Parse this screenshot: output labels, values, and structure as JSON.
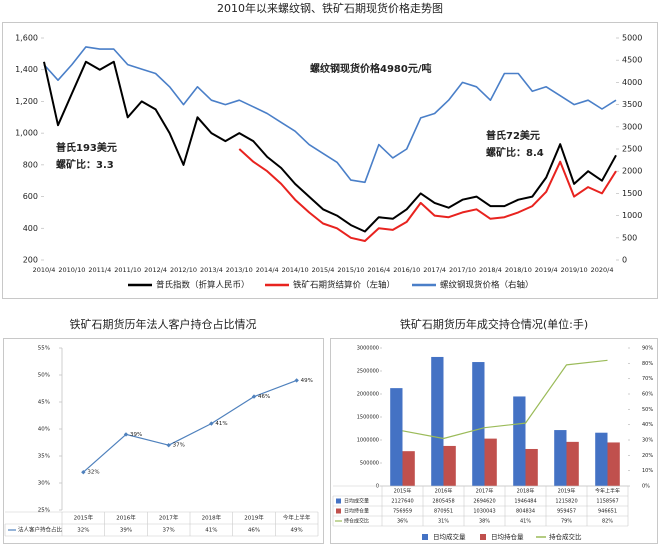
{
  "chart_data": [
    {
      "type": "line",
      "title": "2010年以来螺纹钢、铁矿石期现货价格走势图",
      "annotations": [
        "螺纹钢现货价格4980元/吨",
        "普氏193美元",
        "螺矿比：3.3",
        "普氏72美元",
        "螺矿比：8.4"
      ],
      "categories": [
        "2010/4",
        null,
        "2010/10",
        null,
        "2011/4",
        null,
        "2011/10",
        null,
        "2012/4",
        null,
        "2012/10",
        null,
        "2013/4",
        null,
        "2013/10",
        null,
        "2014/4",
        null,
        "2014/10",
        null,
        "2015/4",
        null,
        "2015/10",
        null,
        "2016/4",
        null,
        "2016/10",
        null,
        "2017/4",
        null,
        "2017/10",
        null,
        "2018/4",
        null,
        "2018/10",
        null,
        "2019/4",
        null,
        "2019/10",
        null,
        "2020/4",
        null
      ],
      "series": [
        {
          "name": "普氏指数（折算人民币）",
          "color": "#000000",
          "values": [
            1450,
            1050,
            1250,
            1450,
            1400,
            1450,
            1100,
            1200,
            1150,
            1000,
            800,
            1100,
            1000,
            950,
            1000,
            950,
            850,
            780,
            680,
            600,
            520,
            480,
            420,
            380,
            470,
            460,
            520,
            620,
            560,
            530,
            580,
            600,
            540,
            540,
            580,
            600,
            720,
            930,
            680,
            760,
            700,
            860
          ]
        },
        {
          "name": "铁矿石期货结算价（左轴）",
          "color": "#e8231f",
          "values": [
            null,
            null,
            null,
            null,
            null,
            null,
            null,
            null,
            null,
            null,
            null,
            null,
            null,
            null,
            900,
            820,
            760,
            680,
            580,
            500,
            430,
            400,
            340,
            320,
            400,
            390,
            440,
            560,
            480,
            470,
            500,
            520,
            460,
            470,
            500,
            540,
            630,
            820,
            600,
            660,
            620,
            760
          ]
        },
        {
          "name": "螺纹钢现货价格（右轴）",
          "color": "#4a7fc8",
          "axis": "y2",
          "values": [
            4400,
            4050,
            4400,
            4800,
            4750,
            4750,
            4400,
            4300,
            4200,
            3900,
            3500,
            3900,
            3600,
            3500,
            3600,
            3450,
            3300,
            3100,
            2900,
            2600,
            2400,
            2200,
            1800,
            1750,
            2600,
            2300,
            2500,
            3200,
            3300,
            3600,
            4000,
            3900,
            3600,
            4200,
            4200,
            3800,
            3900,
            3700,
            3500,
            3600,
            3400,
            3600
          ]
        }
      ],
      "ylim": [
        200,
        1600
      ],
      "yticks": [
        200,
        400,
        600,
        800,
        {
          "value": 1000,
          "label": "1,000"
        },
        {
          "value": 1200,
          "label": "1,200"
        },
        {
          "value": 1400,
          "label": "1,400"
        },
        {
          "value": 1600,
          "label": "1,600"
        }
      ],
      "y2lim": [
        0,
        5000
      ],
      "y2ticks": [
        0,
        500,
        1000,
        1500,
        2000,
        2500,
        3000,
        3500,
        4000,
        4500,
        5000
      ],
      "grid": false
    },
    {
      "type": "line",
      "title": "铁矿石期货历年法人客户持仓占比情况",
      "categories": [
        "2015年",
        "2016年",
        "2017年",
        "2018年",
        "2019年",
        "今年上半年"
      ],
      "series": [
        {
          "name": "法人客户持仓占比",
          "color": "#4f81bd",
          "values": [
            32,
            39,
            37,
            41,
            46,
            49
          ],
          "value_labels": [
            "32%",
            "39%",
            "37%",
            "41%",
            "46%",
            "49%"
          ]
        }
      ],
      "ylim": [
        25,
        55
      ],
      "yticks": [
        {
          "value": 25,
          "label": "25%"
        },
        {
          "value": 30,
          "label": "30%"
        },
        {
          "value": 35,
          "label": "35%"
        },
        {
          "value": 40,
          "label": "40%"
        },
        {
          "value": 45,
          "label": "45%"
        },
        {
          "value": 50,
          "label": "50%"
        },
        {
          "value": 55,
          "label": "55%"
        }
      ],
      "grid": false
    },
    {
      "type": "bar",
      "title": "铁矿石期货历年成交持仓情况(单位:手)",
      "categories": [
        "2015年",
        "2016年",
        "2017年",
        "2018年",
        "2019年",
        "今年上半年"
      ],
      "series": [
        {
          "name": "日均成交量",
          "color": "#4472c4",
          "values": [
            2127640,
            2805458,
            2694620,
            1946484,
            1215820,
            1158567
          ]
        },
        {
          "name": "日均持仓量",
          "color": "#c0504d",
          "values": [
            756959,
            870951,
            1030043,
            804834,
            959457,
            946651
          ]
        },
        {
          "name": "持仓成交比",
          "color": "#9bbb59",
          "type": "line",
          "axis": "y2",
          "values": [
            36,
            31,
            38,
            41,
            79,
            82
          ],
          "value_labels": [
            "36%",
            "31%",
            "38%",
            "41%",
            "79%",
            "82%"
          ]
        }
      ],
      "ylim": [
        0,
        3000000
      ],
      "yticks": [
        0,
        500000,
        1000000,
        1500000,
        2000000,
        2500000,
        3000000
      ],
      "y2lim": [
        0,
        90
      ],
      "y2ticks": [
        {
          "value": 0,
          "label": "0%"
        },
        {
          "value": 10,
          "label": "10%"
        },
        {
          "value": 20,
          "label": "20%"
        },
        {
          "value": 30,
          "label": "30%"
        },
        {
          "value": 40,
          "label": "40%"
        },
        {
          "value": 50,
          "label": "50%"
        },
        {
          "value": 60,
          "label": "60%"
        },
        {
          "value": 70,
          "label": "70%"
        },
        {
          "value": 80,
          "label": "80%"
        },
        {
          "value": 90,
          "label": "90%"
        }
      ],
      "grid": false
    }
  ]
}
